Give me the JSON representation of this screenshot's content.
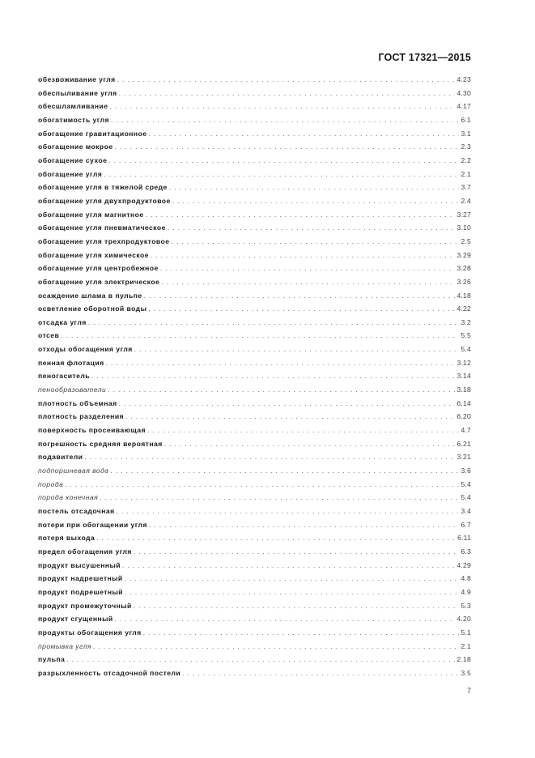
{
  "header": {
    "title": "ГОСТ  17321—2015"
  },
  "entries": [
    {
      "term": "обезвоживание угля",
      "ref": "4.23",
      "italic": false
    },
    {
      "term": "обеспыливание угля",
      "ref": "4.30",
      "italic": false
    },
    {
      "term": "обесшламливание",
      "ref": "4.17",
      "italic": false
    },
    {
      "term": "обогатимость угля",
      "ref": "6.1",
      "italic": false
    },
    {
      "term": "обогащение гравитационное",
      "ref": "3.1",
      "italic": false
    },
    {
      "term": "обогащение мокрое",
      "ref": "2.3",
      "italic": false
    },
    {
      "term": "обогащение сухое",
      "ref": "2.2",
      "italic": false
    },
    {
      "term": "обогащение угля",
      "ref": "2.1",
      "italic": false
    },
    {
      "term": "обогащение угля в тяжелой среде",
      "ref": "3.7",
      "italic": false
    },
    {
      "term": "обогащение угля двухпродуктовое",
      "ref": "2.4",
      "italic": false
    },
    {
      "term": "обогащение угля магнитное",
      "ref": "3.27",
      "italic": false
    },
    {
      "term": "обогащение угля пневматическое",
      "ref": "3.10",
      "italic": false
    },
    {
      "term": "обогащение угля трехпродуктовое",
      "ref": "2.5",
      "italic": false
    },
    {
      "term": "обогащение угля химическое",
      "ref": "3.29",
      "italic": false
    },
    {
      "term": "обогащение угля центробежное",
      "ref": "3.28",
      "italic": false
    },
    {
      "term": "обогащение угля электрическое",
      "ref": "3.26",
      "italic": false
    },
    {
      "term": "осаждение шлама в пульпе",
      "ref": "4.18",
      "italic": false
    },
    {
      "term": "осветление оборотной воды",
      "ref": "4.22",
      "italic": false
    },
    {
      "term": "отсадка угля",
      "ref": "3.2",
      "italic": false
    },
    {
      "term": "отсев",
      "ref": "5.5",
      "italic": false
    },
    {
      "term": "отходы обогащения угля",
      "ref": "5.4",
      "italic": false
    },
    {
      "term": "пенная флотация",
      "ref": "3.12",
      "italic": false
    },
    {
      "term": "пеногаситель",
      "ref": "3.14",
      "italic": false
    },
    {
      "term": "пенообразователи",
      "ref": "3.18",
      "italic": true
    },
    {
      "term": "плотность объемная",
      "ref": "6.14",
      "italic": false
    },
    {
      "term": "плотность разделения",
      "ref": "6.20",
      "italic": false
    },
    {
      "term": "поверхность просеивающая",
      "ref": "4.7",
      "italic": false
    },
    {
      "term": "погрешность средняя вероятная",
      "ref": "6.21",
      "italic": false
    },
    {
      "term": "подавители",
      "ref": "3.21",
      "italic": false
    },
    {
      "term": "подпоршневая вода",
      "ref": "3.6",
      "italic": true
    },
    {
      "term": "порода",
      "ref": "5.4",
      "italic": true
    },
    {
      "term": "порода конечная",
      "ref": "5.4",
      "italic": true
    },
    {
      "term": "постель отсадочная",
      "ref": "3.4",
      "italic": false
    },
    {
      "term": "потери при обогащении угля",
      "ref": "6.7",
      "italic": false
    },
    {
      "term": "потеря выхода",
      "ref": "6.11",
      "italic": false
    },
    {
      "term": "предел обогащения угля",
      "ref": "6.3",
      "italic": false
    },
    {
      "term": "продукт высушенный",
      "ref": "4.29",
      "italic": false
    },
    {
      "term": "продукт надрешетный",
      "ref": "4.8",
      "italic": false
    },
    {
      "term": "продукт подрешетный",
      "ref": "4.9",
      "italic": false
    },
    {
      "term": "продукт промежуточный",
      "ref": "5.3",
      "italic": false
    },
    {
      "term": "продукт сгущенный",
      "ref": "4.20",
      "italic": false
    },
    {
      "term": "продукты обогащения угля",
      "ref": "5.1",
      "italic": false
    },
    {
      "term": "промывка угля",
      "ref": "2.1",
      "italic": true
    },
    {
      "term": "пульпа",
      "ref": "2.18",
      "italic": false
    },
    {
      "term": "разрыхленность отсадочной постели",
      "ref": "3.5",
      "italic": false
    }
  ],
  "footer": {
    "page_number": "7"
  }
}
